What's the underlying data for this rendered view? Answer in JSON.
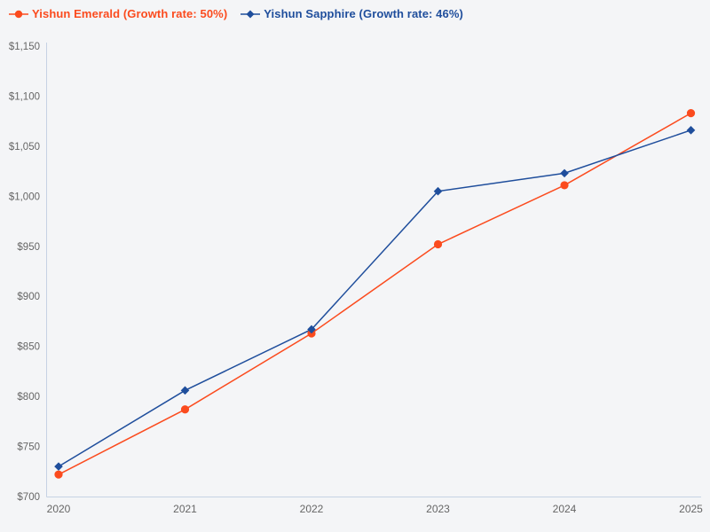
{
  "page": {
    "background": "#f4f5f7"
  },
  "legend": {
    "items": [
      {
        "id": "emerald",
        "label": "Yishun Emerald (Growth rate: 50%)",
        "color": "#fb4b1e",
        "marker": "circle"
      },
      {
        "id": "sapphire",
        "label": "Yishun Sapphire (Growth rate: 46%)",
        "color": "#1f4e9c",
        "marker": "diamond"
      }
    ]
  },
  "chart_data": {
    "type": "line",
    "title": "",
    "xlabel": "",
    "ylabel": "",
    "x": [
      2020,
      2021,
      2022,
      2023,
      2024,
      2025
    ],
    "series": [
      {
        "id": "emerald",
        "name": "Yishun Emerald (Growth rate: 50%)",
        "color": "#fb4b1e",
        "marker": "circle",
        "values": [
          722,
          787,
          863,
          952,
          1011,
          1083
        ]
      },
      {
        "id": "sapphire",
        "name": "Yishun Sapphire (Growth rate: 46%)",
        "color": "#1f4e9c",
        "marker": "diamond",
        "values": [
          730,
          806,
          867,
          1005,
          1023,
          1066
        ]
      }
    ],
    "ylim": [
      700,
      1150
    ],
    "yticks": [
      {
        "value": 700,
        "label": "$700"
      },
      {
        "value": 750,
        "label": "$750"
      },
      {
        "value": 800,
        "label": "$800"
      },
      {
        "value": 850,
        "label": "$850"
      },
      {
        "value": 900,
        "label": "$900"
      },
      {
        "value": 950,
        "label": "$950"
      },
      {
        "value": 1000,
        "label": "$1,000"
      },
      {
        "value": 1050,
        "label": "$1,050"
      },
      {
        "value": 1100,
        "label": "$1,100"
      },
      {
        "value": 1150,
        "label": "$1,150"
      }
    ],
    "xtick_labels": [
      "2020",
      "2021",
      "2022",
      "2023",
      "2024",
      "2025"
    ],
    "grid": false,
    "legend_position": "top-left",
    "axis_color": "#c6d2e4",
    "tick_label_color": "#666666"
  }
}
